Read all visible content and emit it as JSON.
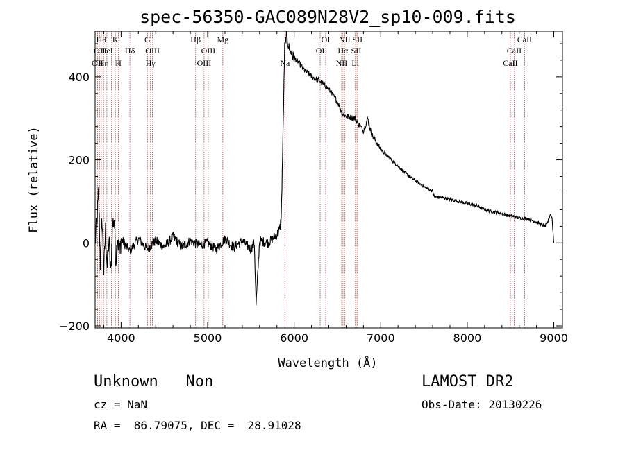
{
  "chart_data": {
    "type": "line",
    "title": "spec-56350-GAC089N28V2_sp10-009.fits",
    "xlabel": "Wavelength (Å)",
    "ylabel": "Flux (relative)",
    "xlim": [
      3700,
      9100
    ],
    "ylim": [
      -205,
      510
    ],
    "xticks": [
      4000,
      5000,
      6000,
      7000,
      8000,
      9000
    ],
    "yticks": [
      -200,
      0,
      200,
      400
    ],
    "series": [
      {
        "x": [
          3700,
          3720,
          3740,
          3760,
          3780,
          3800,
          3820,
          3840,
          3860,
          3880,
          3900,
          3920,
          3940,
          3960,
          3980,
          4000,
          4100,
          4200,
          4300,
          4400,
          4500,
          4600,
          4700,
          4800,
          4900,
          5000,
          5100,
          5200,
          5300,
          5400,
          5500,
          5540,
          5560,
          5600,
          5700,
          5750,
          5800,
          5830,
          5850,
          5870,
          5890,
          5910,
          5940,
          5980,
          6050,
          6100,
          6200,
          6300,
          6400,
          6500,
          6560,
          6600,
          6700,
          6800,
          6850,
          6870,
          6900,
          7000,
          7100,
          7200,
          7300,
          7400,
          7500,
          7600,
          7620,
          7700,
          7800,
          7900,
          8000,
          8100,
          8200,
          8300,
          8400,
          8500,
          8600,
          8700,
          8800,
          8850,
          8900,
          8930,
          8960,
          8980,
          9000
        ],
        "y": [
          0,
          50,
          120,
          -50,
          60,
          -70,
          30,
          -60,
          10,
          -80,
          40,
          60,
          -40,
          20,
          -30,
          10,
          -20,
          10,
          -15,
          5,
          -10,
          15,
          -10,
          5,
          -5,
          0,
          -15,
          10,
          -10,
          5,
          -15,
          0,
          -150,
          5,
          0,
          10,
          20,
          30,
          60,
          250,
          470,
          500,
          470,
          450,
          435,
          420,
          400,
          390,
          370,
          340,
          310,
          305,
          300,
          270,
          300,
          280,
          260,
          225,
          205,
          185,
          165,
          150,
          135,
          125,
          110,
          110,
          105,
          100,
          95,
          90,
          80,
          75,
          70,
          65,
          60,
          58,
          50,
          45,
          40,
          50,
          70,
          60,
          0
        ]
      }
    ],
    "spectral_lines": [
      {
        "x": 3727,
        "label": "OII",
        "row": 2
      },
      {
        "x": 3750,
        "label": "OII",
        "row": 1
      },
      {
        "x": 3771,
        "label": "Hθ",
        "row": 0
      },
      {
        "x": 3798,
        "label": "Hη",
        "row": 2
      },
      {
        "x": 3835,
        "label": "HeI",
        "row": 1
      },
      {
        "x": 3889,
        "label": "",
        "row": 0
      },
      {
        "x": 3934,
        "label": "K",
        "row": 0
      },
      {
        "x": 3969,
        "label": "H",
        "row": 2
      },
      {
        "x": 4102,
        "label": "Hδ",
        "row": 1
      },
      {
        "x": 4304,
        "label": "G",
        "row": 0
      },
      {
        "x": 4340,
        "label": "Hγ",
        "row": 2
      },
      {
        "x": 4363,
        "label": "OIII",
        "row": 1
      },
      {
        "x": 4861,
        "label": "Hβ",
        "row": 0
      },
      {
        "x": 4959,
        "label": "OIII",
        "row": 2
      },
      {
        "x": 5007,
        "label": "OIII",
        "row": 1
      },
      {
        "x": 5175,
        "label": "Mg",
        "row": 0
      },
      {
        "x": 5893,
        "label": "Na",
        "row": 2
      },
      {
        "x": 6300,
        "label": "OI",
        "row": 1
      },
      {
        "x": 6364,
        "label": "OI",
        "row": 0
      },
      {
        "x": 6548,
        "label": "NII",
        "row": 2
      },
      {
        "x": 6563,
        "label": "Hα",
        "row": 1
      },
      {
        "x": 6583,
        "label": "NII",
        "row": 0
      },
      {
        "x": 6707,
        "label": "Li",
        "row": 2
      },
      {
        "x": 6716,
        "label": "SII",
        "row": 1
      },
      {
        "x": 6731,
        "label": "SII",
        "row": 0
      },
      {
        "x": 8498,
        "label": "CaII",
        "row": 2
      },
      {
        "x": 8542,
        "label": "CaII",
        "row": 1
      },
      {
        "x": 8662,
        "label": "CaII",
        "row": 0
      }
    ]
  },
  "info": {
    "class_text": "Unknown   Non",
    "cz_text": "cz = NaN",
    "radec_text": "RA =  86.79075, DEC =  28.91028",
    "survey_text": "LAMOST DR2",
    "obsdate_text": "Obs-Date: 20130226"
  }
}
